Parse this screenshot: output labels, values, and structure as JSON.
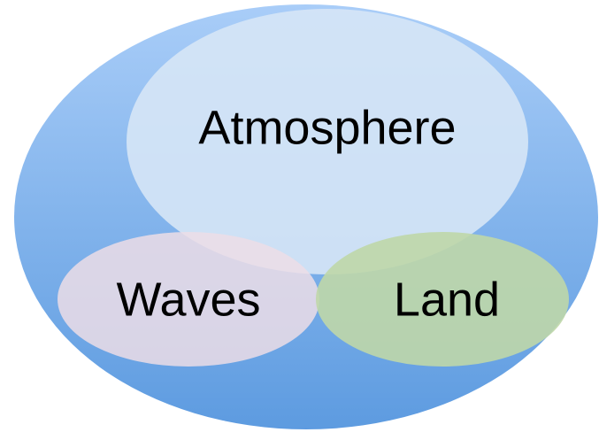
{
  "nodes": [
    {
      "label": "Atmosphere"
    },
    {
      "label": "Waves"
    },
    {
      "label": "Land"
    }
  ]
}
